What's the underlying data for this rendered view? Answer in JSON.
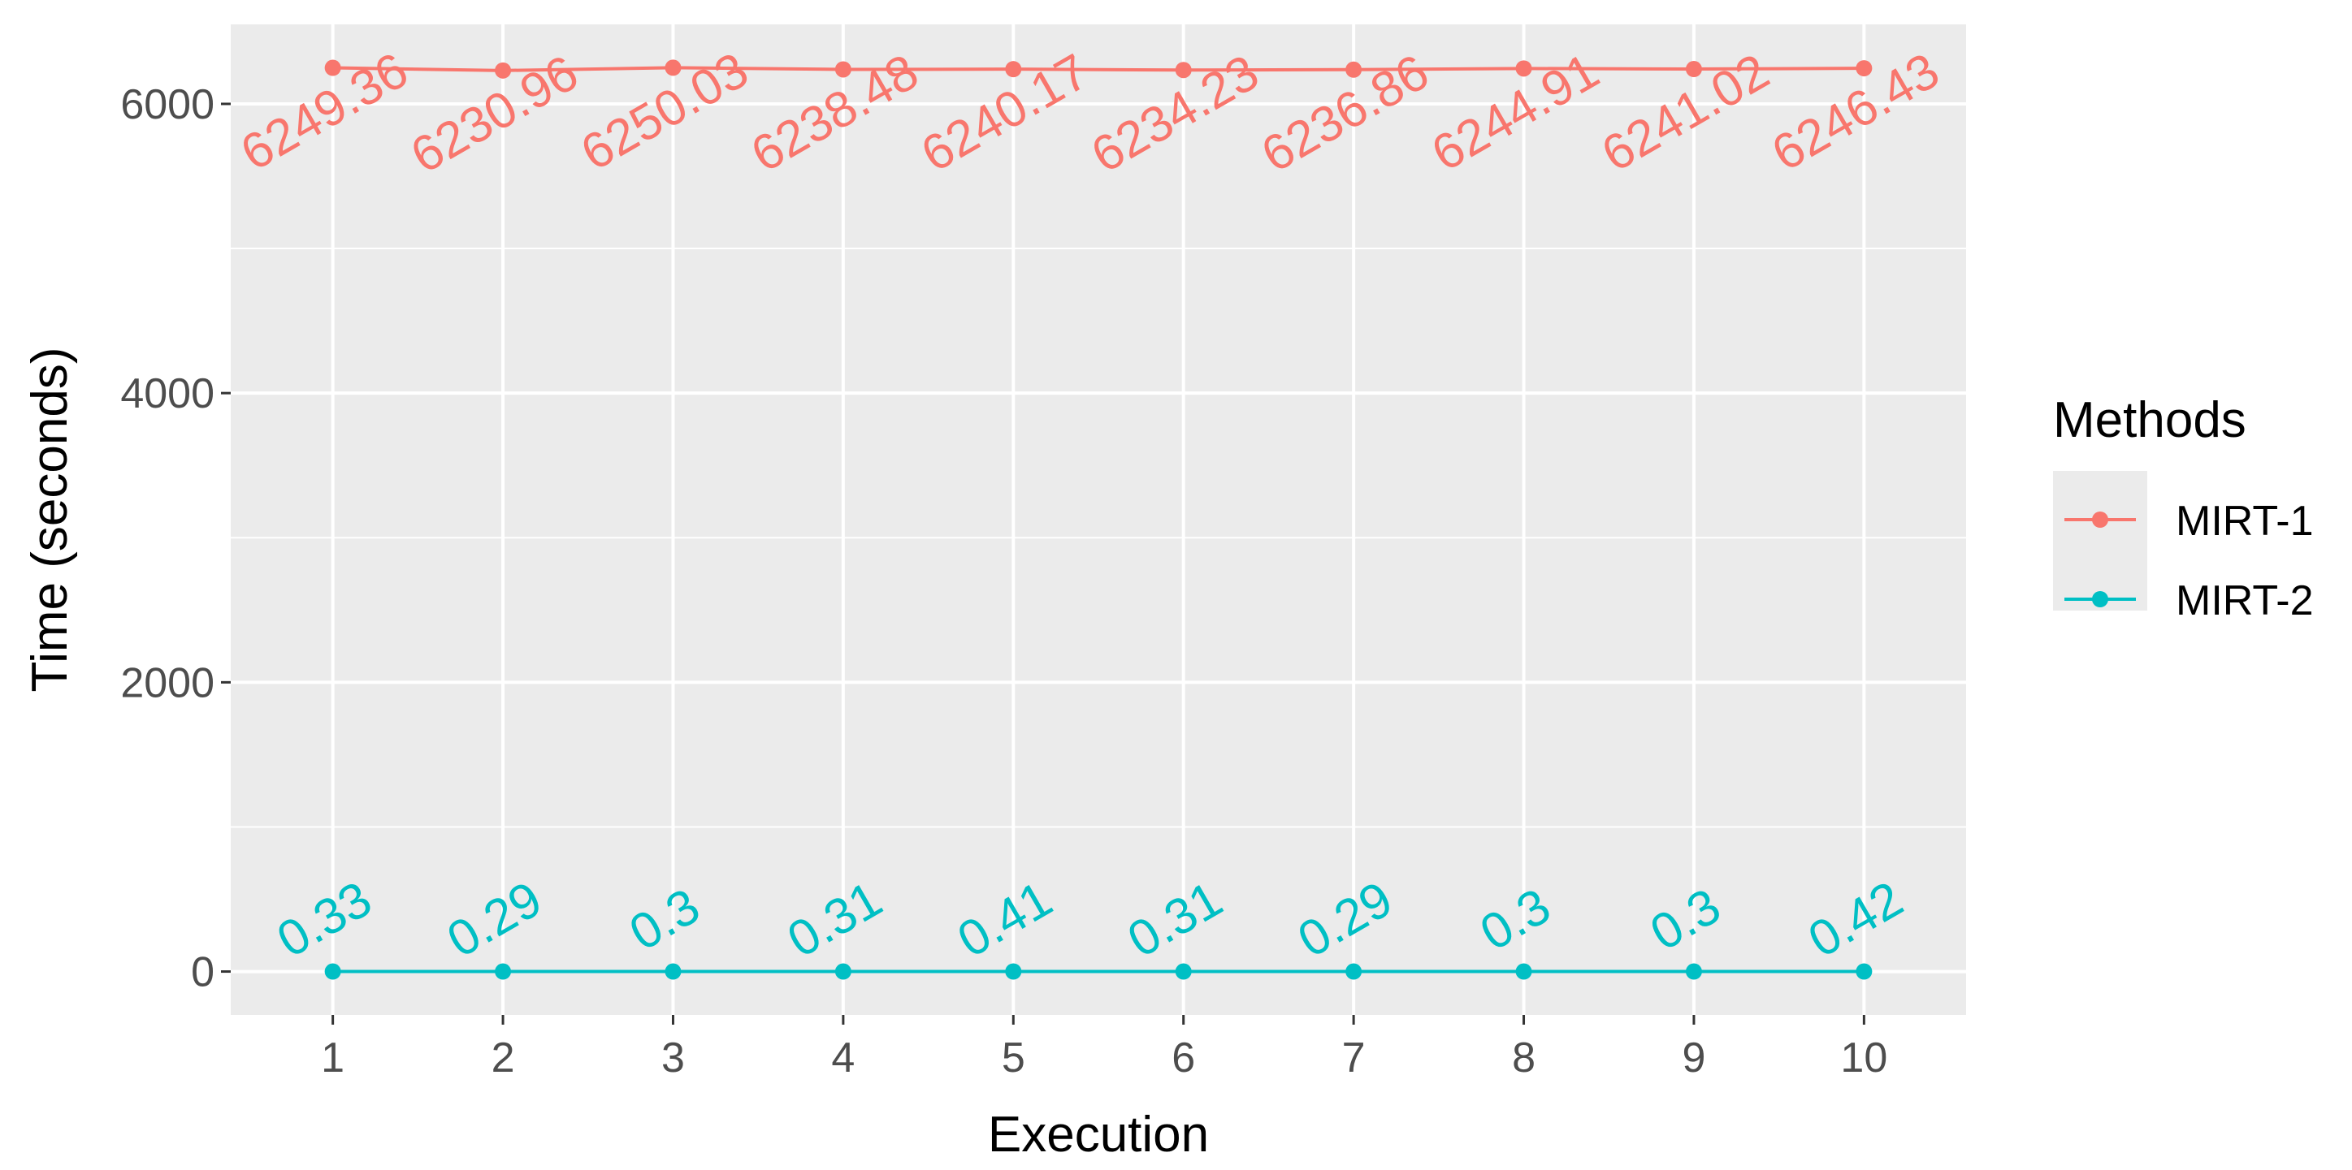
{
  "chart_data": {
    "type": "line",
    "title": "",
    "xlabel": "Execution",
    "ylabel": "Time (seconds)",
    "x": [
      1,
      2,
      3,
      4,
      5,
      6,
      7,
      8,
      9,
      10
    ],
    "x_tick_labels": [
      "1",
      "2",
      "3",
      "4",
      "5",
      "6",
      "7",
      "8",
      "9",
      "10"
    ],
    "y_ticks": [
      0,
      2000,
      4000,
      6000
    ],
    "y_tick_labels": [
      "0",
      "2000",
      "4000",
      "6000"
    ],
    "xlim": [
      0.4,
      10.6
    ],
    "ylim": [
      -300,
      6550
    ],
    "grid": true,
    "legend": {
      "title": "Methods",
      "position": "right"
    },
    "series": [
      {
        "name": "MIRT-1",
        "color": "#F8766D",
        "values": [
          6249.36,
          6230.96,
          6250.03,
          6238.48,
          6240.17,
          6234.23,
          6236.86,
          6244.91,
          6241.02,
          6246.43
        ],
        "labels": [
          "6249.36",
          "6230.96",
          "6250.03",
          "6238.48",
          "6240.17",
          "6234.23",
          "6236.86",
          "6244.91",
          "6241.02",
          "6246.43"
        ]
      },
      {
        "name": "MIRT-2",
        "color": "#00BFC4",
        "values": [
          0.33,
          0.29,
          0.3,
          0.31,
          0.41,
          0.31,
          0.29,
          0.3,
          0.3,
          0.42
        ],
        "labels": [
          "0.33",
          "0.29",
          "0.3",
          "0.31",
          "0.41",
          "0.31",
          "0.29",
          "0.3",
          "0.3",
          "0.42"
        ]
      }
    ]
  }
}
